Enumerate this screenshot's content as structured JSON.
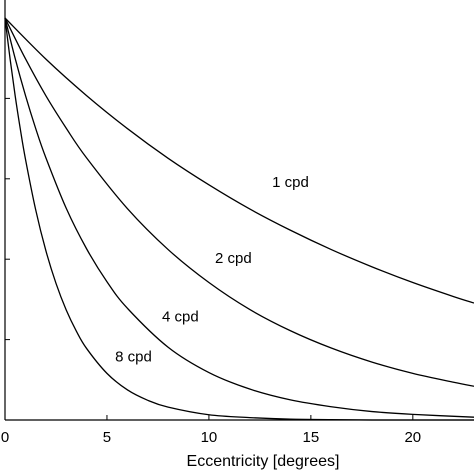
{
  "chart_data": {
    "type": "line",
    "title": "",
    "xlabel": "Eccentricity [degrees]",
    "ylabel": "",
    "xlim": [
      0,
      23
    ],
    "ylim": [
      0,
      1
    ],
    "grid": false,
    "legend": "none",
    "x_ticks": [
      0,
      5,
      10,
      15,
      20
    ],
    "x_tick_labels": [
      "0",
      "5",
      "10",
      "15",
      "20"
    ],
    "y_ticks": [
      0.2,
      0.4,
      0.6,
      0.8
    ],
    "series": [
      {
        "name": "1 cpd",
        "x": [
          0,
          2,
          4,
          6,
          8,
          10,
          12,
          14,
          16,
          18,
          20,
          22,
          23
        ],
        "y": [
          1.0,
          0.898,
          0.807,
          0.725,
          0.651,
          0.585,
          0.525,
          0.472,
          0.424,
          0.381,
          0.342,
          0.307,
          0.291
        ],
        "label_at": [
          14,
          0.58
        ]
      },
      {
        "name": "2 cpd",
        "x": [
          0,
          1,
          2,
          3,
          4,
          6,
          8,
          10,
          12,
          14,
          16,
          18,
          20,
          22,
          23
        ],
        "y": [
          1.0,
          0.899,
          0.807,
          0.726,
          0.652,
          0.526,
          0.424,
          0.342,
          0.275,
          0.222,
          0.179,
          0.144,
          0.116,
          0.094,
          0.084
        ],
        "label_at": [
          11.2,
          0.39
        ]
      },
      {
        "name": "4 cpd",
        "x": [
          0,
          0.5,
          1,
          1.5,
          2,
          3,
          4,
          5,
          6,
          8,
          10,
          12,
          14,
          16,
          18,
          20,
          23
        ],
        "y": [
          1.0,
          0.899,
          0.808,
          0.726,
          0.653,
          0.527,
          0.426,
          0.344,
          0.278,
          0.181,
          0.118,
          0.077,
          0.05,
          0.033,
          0.021,
          0.014,
          0.007
        ],
        "label_at": [
          8.6,
          0.245
        ]
      },
      {
        "name": "8 cpd",
        "x": [
          0,
          0.25,
          0.5,
          0.75,
          1,
          1.5,
          2,
          2.5,
          3,
          3.5,
          4,
          5,
          6,
          7,
          8,
          10,
          12,
          14,
          16,
          18,
          20,
          23
        ],
        "y": [
          1.0,
          0.898,
          0.806,
          0.724,
          0.65,
          0.524,
          0.422,
          0.34,
          0.274,
          0.221,
          0.178,
          0.116,
          0.075,
          0.049,
          0.032,
          0.013,
          0.006,
          0.002,
          0.001,
          0.0,
          0.0,
          0.0
        ],
        "label_at": [
          6.3,
          0.145
        ]
      }
    ]
  }
}
